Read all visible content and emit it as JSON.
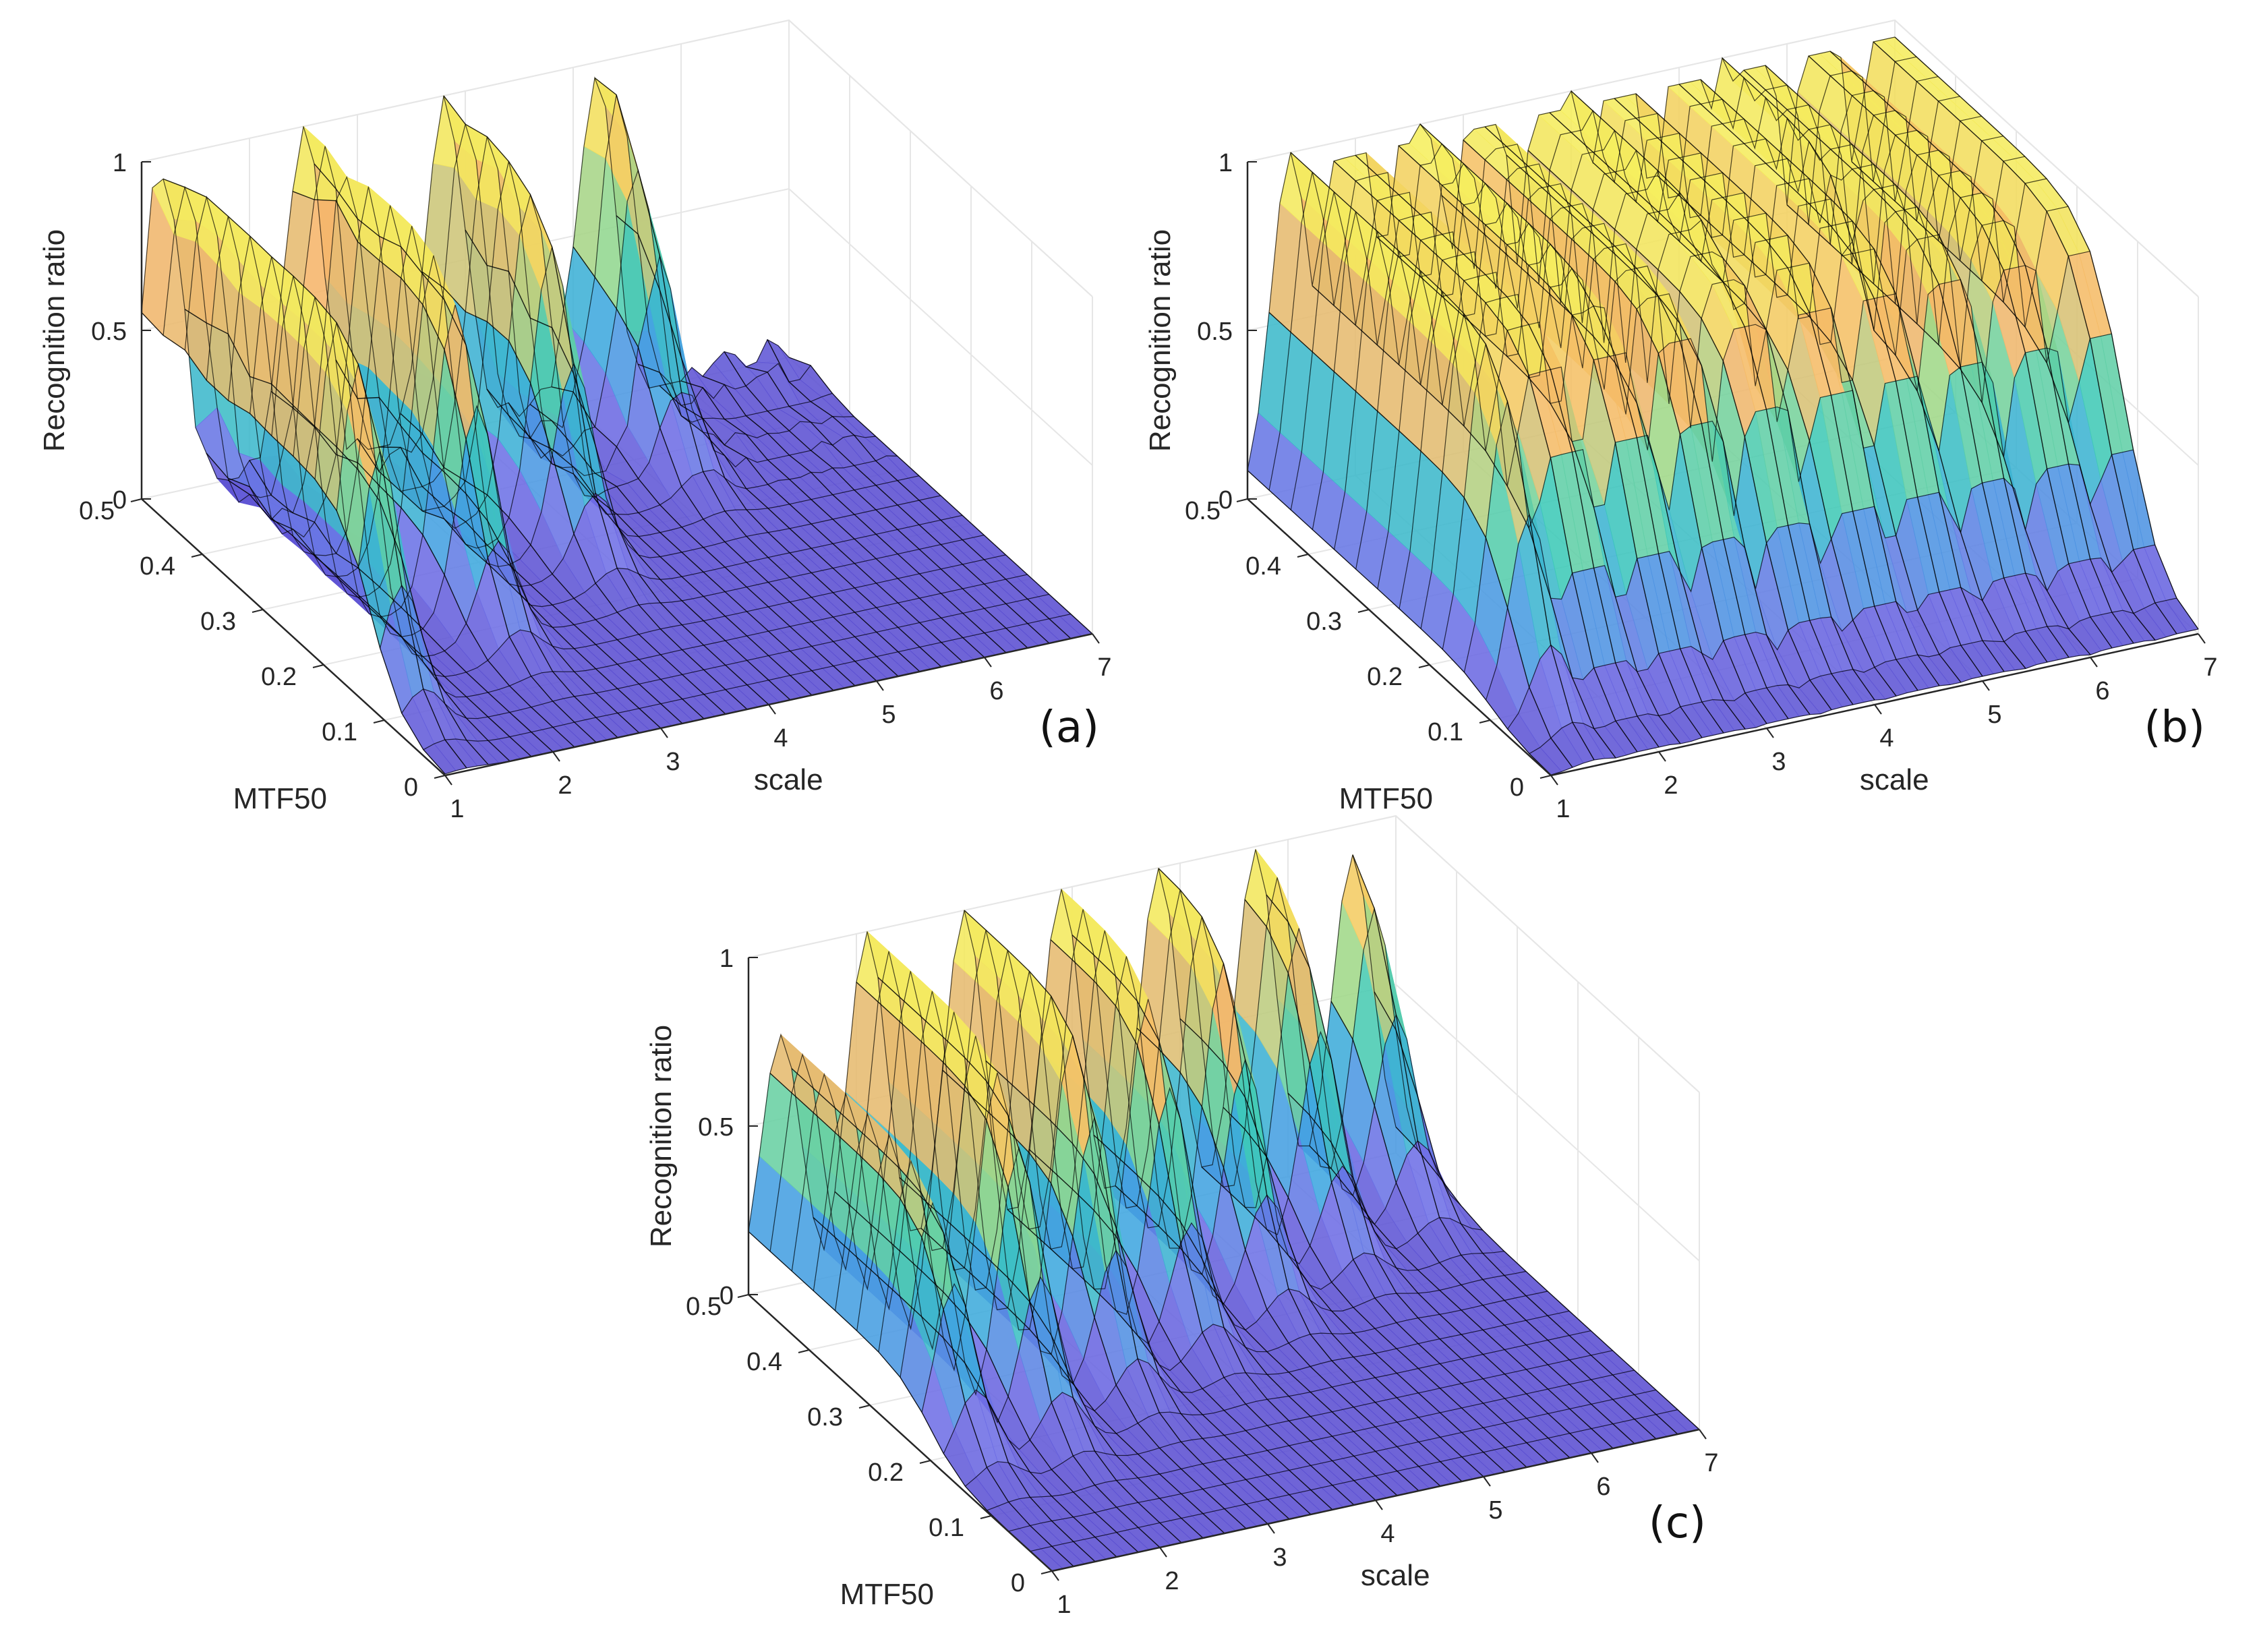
{
  "figure": {
    "panels": [
      "a",
      "b",
      "c"
    ]
  },
  "colors": {
    "colormap": [
      "#5b4fd1",
      "#6f6fe6",
      "#3fa7e0",
      "#3dc9b8",
      "#9ed98a",
      "#f6b46a",
      "#f2e35c",
      "#f7f260"
    ],
    "mesh": "#000000",
    "grid": "#e6e6e6",
    "axis": "#262626"
  },
  "chart_data": [
    {
      "id": "a",
      "type": "surface",
      "label": "(a)",
      "xlabel": "scale",
      "ylabel": "MTF50",
      "zlabel": "Recognition ratio",
      "xlim": [
        1,
        7
      ],
      "ylim": [
        0,
        0.5
      ],
      "zlim": [
        0,
        1
      ],
      "xticks": [
        "1",
        "2",
        "3",
        "4",
        "5",
        "6",
        "7"
      ],
      "yticks": [
        "0",
        "0.1",
        "0.2",
        "0.3",
        "0.4",
        "0.5"
      ],
      "zticks": [
        "0",
        "0.5",
        "1"
      ],
      "grid": true,
      "ridges": [
        {
          "scale": 1.2,
          "peak": 1.0,
          "threshold": 0.12
        },
        {
          "scale": 2.5,
          "peak": 1.0,
          "threshold": 0.2
        },
        {
          "scale": 3.8,
          "peak": 1.0,
          "threshold": 0.28
        },
        {
          "scale": 5.2,
          "peak": 0.95,
          "threshold": 0.38
        }
      ],
      "noise_level": 0.15
    },
    {
      "id": "b",
      "type": "surface",
      "label": "(b)",
      "xlabel": "scale",
      "ylabel": "MTF50",
      "zlabel": "Recognition ratio",
      "xlim": [
        1,
        7
      ],
      "ylim": [
        0,
        0.5
      ],
      "zlim": [
        0,
        1
      ],
      "xticks": [
        "1",
        "2",
        "3",
        "4",
        "5",
        "6",
        "7"
      ],
      "yticks": [
        "0",
        "0.1",
        "0.2",
        "0.3",
        "0.4",
        "0.5"
      ],
      "zticks": [
        "0",
        "0.5",
        "1"
      ],
      "grid": true,
      "ridges": [
        {
          "scale": 1.4,
          "peak": 1.0,
          "threshold": 0.1
        },
        {
          "scale": 2.6,
          "peak": 1.0,
          "threshold": 0.15
        },
        {
          "scale": 4.0,
          "peak": 1.0,
          "threshold": 0.2
        },
        {
          "scale": 5.4,
          "peak": 1.0,
          "threshold": 0.25
        }
      ],
      "plateau": 0.95,
      "noise_level": 0.0
    },
    {
      "id": "c",
      "type": "surface",
      "label": "(c)",
      "xlabel": "scale",
      "ylabel": "MTF50",
      "zlabel": "Recognition ratio",
      "xlim": [
        1,
        7
      ],
      "ylim": [
        0,
        0.5
      ],
      "zlim": [
        0,
        1
      ],
      "xticks": [
        "1",
        "2",
        "3",
        "4",
        "5",
        "6",
        "7"
      ],
      "yticks": [
        "0",
        "0.1",
        "0.2",
        "0.3",
        "0.4",
        "0.5"
      ],
      "zticks": [
        "0",
        "0.5",
        "1"
      ],
      "grid": true,
      "ridges": [
        {
          "scale": 1.3,
          "peak": 0.75,
          "threshold": 0.2
        },
        {
          "scale": 2.1,
          "peak": 1.0,
          "threshold": 0.22
        },
        {
          "scale": 3.0,
          "peak": 1.0,
          "threshold": 0.26
        },
        {
          "scale": 3.9,
          "peak": 1.0,
          "threshold": 0.3
        },
        {
          "scale": 4.8,
          "peak": 1.0,
          "threshold": 0.34
        },
        {
          "scale": 5.7,
          "peak": 1.0,
          "threshold": 0.38
        },
        {
          "scale": 6.6,
          "peak": 0.95,
          "threshold": 0.42
        }
      ],
      "noise_level": 0.0
    }
  ]
}
